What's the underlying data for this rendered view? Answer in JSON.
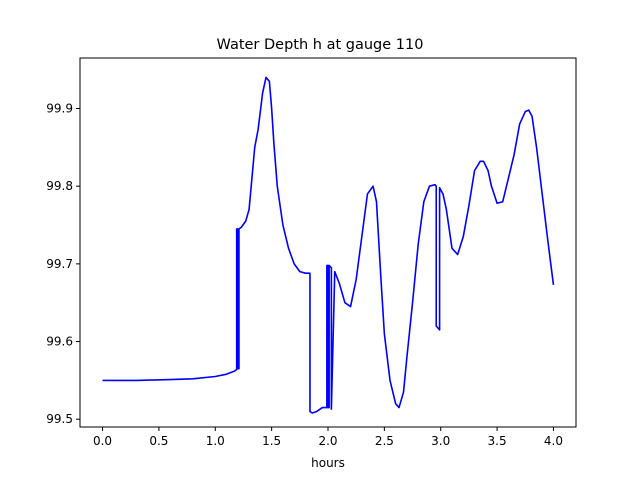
{
  "chart_data": {
    "type": "line",
    "title": "Water Depth h at gauge 110",
    "xlabel": "hours",
    "ylabel": "",
    "xlim": [
      -0.2,
      4.2
    ],
    "ylim": [
      99.49,
      99.965
    ],
    "xticks": [
      0.0,
      0.5,
      1.0,
      1.5,
      2.0,
      2.5,
      3.0,
      3.5,
      4.0
    ],
    "xtick_labels": [
      "0.0",
      "0.5",
      "1.0",
      "1.5",
      "2.0",
      "2.5",
      "3.0",
      "3.5",
      "4.0"
    ],
    "yticks": [
      99.5,
      99.6,
      99.7,
      99.8,
      99.9
    ],
    "ytick_labels": [
      "99.5",
      "99.6",
      "99.7",
      "99.8",
      "99.9"
    ],
    "grid": false,
    "series": [
      {
        "color": "#0000ff",
        "x": [
          0.0,
          0.3,
          0.6,
          0.8,
          1.0,
          1.1,
          1.17,
          1.19,
          1.19,
          1.2,
          1.2,
          1.21,
          1.21,
          1.23,
          1.27,
          1.3,
          1.35,
          1.38,
          1.42,
          1.45,
          1.48,
          1.5,
          1.52,
          1.55,
          1.6,
          1.65,
          1.7,
          1.75,
          1.8,
          1.84,
          1.84,
          1.86,
          1.9,
          1.95,
          1.99,
          1.99,
          2.0,
          2.0,
          2.01,
          2.01,
          2.03,
          2.03,
          2.06,
          2.1,
          2.15,
          2.2,
          2.25,
          2.3,
          2.35,
          2.4,
          2.43,
          2.47,
          2.5,
          2.55,
          2.6,
          2.63,
          2.67,
          2.7,
          2.75,
          2.8,
          2.85,
          2.9,
          2.95,
          2.96,
          2.96,
          2.99,
          2.99,
          3.02,
          3.05,
          3.1,
          3.15,
          3.2,
          3.25,
          3.3,
          3.35,
          3.38,
          3.42,
          3.45,
          3.5,
          3.55,
          3.6,
          3.65,
          3.7,
          3.75,
          3.78,
          3.81,
          3.85,
          3.9,
          3.95,
          4.0
        ],
        "y": [
          99.55,
          99.55,
          99.551,
          99.552,
          99.555,
          99.558,
          99.562,
          99.564,
          99.745,
          99.745,
          99.565,
          99.565,
          99.745,
          99.747,
          99.755,
          99.77,
          99.85,
          99.873,
          99.92,
          99.94,
          99.935,
          99.9,
          99.855,
          99.8,
          99.75,
          99.72,
          99.7,
          99.69,
          99.688,
          99.688,
          99.51,
          99.508,
          99.51,
          99.515,
          99.515,
          99.698,
          99.698,
          99.515,
          99.515,
          99.698,
          99.695,
          99.513,
          99.69,
          99.675,
          99.65,
          99.645,
          99.68,
          99.735,
          99.79,
          99.8,
          99.78,
          99.68,
          99.61,
          99.55,
          99.52,
          99.515,
          99.535,
          99.58,
          99.65,
          99.725,
          99.78,
          99.8,
          99.802,
          99.8,
          99.62,
          99.615,
          99.798,
          99.79,
          99.77,
          99.72,
          99.712,
          99.735,
          99.775,
          99.82,
          99.832,
          99.832,
          99.82,
          99.8,
          99.778,
          99.78,
          99.81,
          99.84,
          99.88,
          99.896,
          99.898,
          99.89,
          99.85,
          99.79,
          99.73,
          99.673
        ]
      }
    ]
  }
}
